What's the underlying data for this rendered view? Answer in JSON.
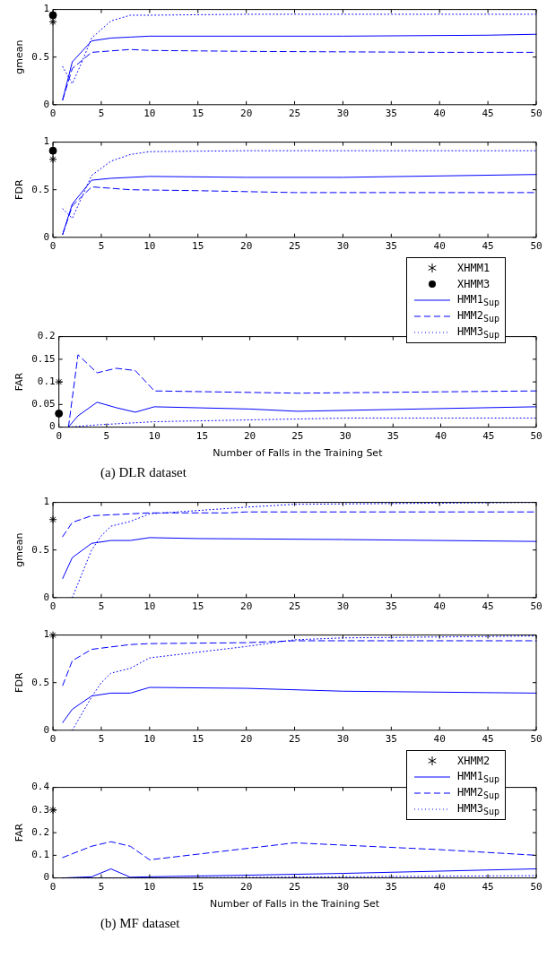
{
  "chart_data": [
    {
      "type": "line",
      "ylabel": "gmean",
      "xlim": [
        0,
        50
      ],
      "xticks": [
        0,
        5,
        10,
        15,
        20,
        25,
        30,
        35,
        40,
        45,
        50
      ],
      "ylim": [
        0,
        1
      ],
      "yticks": [
        0,
        0.5,
        1
      ],
      "series": [
        {
          "type": "scatter",
          "marker": "cross",
          "color": "#000000",
          "x": [
            0
          ],
          "values": [
            0.87
          ]
        },
        {
          "type": "scatter",
          "marker": "circle",
          "color": "#000000",
          "x": [
            0
          ],
          "values": [
            0.94
          ]
        },
        {
          "color": "#0000ff",
          "line_style": "solid",
          "marker": "none",
          "x": [
            1,
            2,
            4,
            6,
            8,
            10,
            18,
            30,
            45,
            50
          ],
          "values": [
            0.05,
            0.45,
            0.67,
            0.7,
            0.71,
            0.72,
            0.72,
            0.72,
            0.73,
            0.74
          ]
        },
        {
          "color": "#0000ff",
          "line_style": "dashed",
          "marker": "none",
          "x": [
            1,
            2,
            4,
            8,
            10,
            20,
            40,
            50
          ],
          "values": [
            0.05,
            0.38,
            0.55,
            0.58,
            0.57,
            0.56,
            0.55,
            0.55
          ]
        },
        {
          "color": "#0000ff",
          "line_style": "dotted",
          "marker": "none",
          "x": [
            1,
            2,
            3,
            4,
            6,
            8,
            10,
            20,
            50
          ],
          "values": [
            0.4,
            0.22,
            0.45,
            0.7,
            0.88,
            0.94,
            0.94,
            0.95,
            0.95
          ]
        }
      ]
    },
    {
      "type": "line",
      "ylabel": "FDR",
      "legend": "bottom right",
      "xlim": [
        0,
        50
      ],
      "xticks": [
        0,
        5,
        10,
        15,
        20,
        25,
        30,
        35,
        40,
        45,
        50
      ],
      "ylim": [
        0,
        1
      ],
      "yticks": [
        0,
        0.5,
        1
      ],
      "series": [
        {
          "name": "XHMM1",
          "type": "scatter",
          "marker": "cross",
          "color": "#000000",
          "x": [
            0
          ],
          "values": [
            0.82
          ]
        },
        {
          "name": "XHMM3",
          "type": "scatter",
          "marker": "circle",
          "color": "#000000",
          "x": [
            0
          ],
          "values": [
            0.91
          ]
        },
        {
          "name": "HMM1$_{Sup}$",
          "color": "#0000ff",
          "line_style": "solid",
          "marker": "none",
          "x": [
            1,
            2,
            4,
            6,
            10,
            20,
            30,
            50
          ],
          "values": [
            0.03,
            0.35,
            0.6,
            0.62,
            0.64,
            0.63,
            0.63,
            0.66
          ]
        },
        {
          "name": "HMM2$_{Sup}$",
          "color": "#0000ff",
          "line_style": "dashed",
          "marker": "none",
          "x": [
            1,
            2,
            4,
            8,
            15,
            25,
            50
          ],
          "values": [
            0.03,
            0.33,
            0.53,
            0.5,
            0.49,
            0.47,
            0.47
          ]
        },
        {
          "name": "HMM3$_{Sup}$",
          "color": "#0000ff",
          "line_style": "dotted",
          "marker": "none",
          "x": [
            1,
            2,
            4,
            6,
            8,
            10,
            20,
            50
          ],
          "values": [
            0.3,
            0.2,
            0.65,
            0.8,
            0.87,
            0.9,
            0.91,
            0.91
          ]
        }
      ]
    },
    {
      "type": "line",
      "ylabel": "FAR",
      "xlabel": "Number of Falls in the Training Set",
      "annotations": [
        "(a) DLR dataset"
      ],
      "xlim": [
        0,
        50
      ],
      "xticks": [
        0,
        5,
        10,
        15,
        20,
        25,
        30,
        35,
        40,
        45,
        50
      ],
      "ylim": [
        0,
        0.2
      ],
      "yticks": [
        0,
        0.05,
        0.1,
        0.15,
        0.2
      ],
      "series": [
        {
          "type": "scatter",
          "marker": "cross",
          "color": "#000000",
          "x": [
            0
          ],
          "values": [
            0.1
          ]
        },
        {
          "type": "scatter",
          "marker": "circle",
          "color": "#000000",
          "x": [
            0
          ],
          "values": [
            0.03
          ]
        },
        {
          "color": "#0000ff",
          "line_style": "solid",
          "marker": "none",
          "x": [
            1,
            2,
            4,
            6,
            8,
            10,
            20,
            25,
            50
          ],
          "values": [
            0,
            0.025,
            0.055,
            0.043,
            0.033,
            0.045,
            0.04,
            0.035,
            0.045
          ]
        },
        {
          "color": "#0000ff",
          "line_style": "dashed",
          "marker": "none",
          "x": [
            1,
            2,
            4,
            6,
            8,
            10,
            25,
            50
          ],
          "values": [
            0,
            0.16,
            0.12,
            0.13,
            0.125,
            0.08,
            0.075,
            0.08
          ]
        },
        {
          "color": "#0000ff",
          "line_style": "dotted",
          "marker": "none",
          "x": [
            1,
            4,
            10,
            30,
            50
          ],
          "values": [
            0,
            0.005,
            0.012,
            0.02,
            0.02
          ]
        }
      ]
    },
    {
      "type": "line",
      "ylabel": "gmean",
      "xlim": [
        0,
        50
      ],
      "xticks": [
        0,
        5,
        10,
        15,
        20,
        25,
        30,
        35,
        40,
        45,
        50
      ],
      "ylim": [
        0,
        1
      ],
      "yticks": [
        0,
        0.5,
        1
      ],
      "series": [
        {
          "type": "scatter",
          "marker": "cross",
          "color": "#000000",
          "x": [
            0
          ],
          "values": [
            0.82
          ]
        },
        {
          "color": "#0000ff",
          "line_style": "solid",
          "marker": "none",
          "x": [
            1,
            2,
            4,
            6,
            8,
            10,
            15,
            30,
            50
          ],
          "values": [
            0.2,
            0.42,
            0.57,
            0.6,
            0.6,
            0.63,
            0.62,
            0.61,
            0.59
          ]
        },
        {
          "color": "#0000ff",
          "line_style": "dashed",
          "marker": "none",
          "x": [
            1,
            2,
            4,
            8,
            10,
            18,
            20,
            50
          ],
          "values": [
            0.64,
            0.79,
            0.86,
            0.88,
            0.89,
            0.89,
            0.9,
            0.9
          ]
        },
        {
          "color": "#0000ff",
          "line_style": "dotted",
          "marker": "none",
          "x": [
            2,
            4,
            5,
            6,
            8,
            10,
            20,
            25,
            50
          ],
          "values": [
            0,
            0.5,
            0.65,
            0.75,
            0.8,
            0.88,
            0.95,
            0.98,
            1
          ]
        }
      ]
    },
    {
      "type": "line",
      "ylabel": "FDR",
      "legend": "bottom right",
      "xlim": [
        0,
        50
      ],
      "xticks": [
        0,
        5,
        10,
        15,
        20,
        25,
        30,
        35,
        40,
        45,
        50
      ],
      "ylim": [
        0,
        1
      ],
      "yticks": [
        0,
        0.5,
        1
      ],
      "series": [
        {
          "name": "XHMM2",
          "type": "scatter",
          "marker": "cross",
          "color": "#000000",
          "x": [
            0
          ],
          "values": [
            1
          ]
        },
        {
          "name": "HMM1$_{Sup}$",
          "color": "#0000ff",
          "line_style": "solid",
          "marker": "none",
          "x": [
            1,
            2,
            4,
            6,
            8,
            10,
            20,
            30,
            50
          ],
          "values": [
            0.08,
            0.22,
            0.36,
            0.39,
            0.39,
            0.45,
            0.44,
            0.41,
            0.39
          ]
        },
        {
          "name": "HMM2$_{Sup}$",
          "color": "#0000ff",
          "line_style": "dashed",
          "marker": "none",
          "x": [
            1,
            2,
            4,
            8,
            10,
            20,
            25,
            50
          ],
          "values": [
            0.47,
            0.73,
            0.85,
            0.9,
            0.91,
            0.92,
            0.94,
            0.94
          ]
        },
        {
          "name": "HMM3$_{Sup}$",
          "color": "#0000ff",
          "line_style": "dotted",
          "marker": "none",
          "x": [
            2,
            4,
            5,
            6,
            8,
            10,
            20,
            25,
            30,
            50
          ],
          "values": [
            0,
            0.35,
            0.5,
            0.6,
            0.65,
            0.76,
            0.88,
            0.95,
            0.97,
            0.99
          ]
        }
      ]
    },
    {
      "type": "line",
      "ylabel": "FAR",
      "xlabel": "Number of Falls in the Training Set",
      "annotations": [
        "(b) MF dataset"
      ],
      "xlim": [
        0,
        50
      ],
      "xticks": [
        0,
        5,
        10,
        15,
        20,
        25,
        30,
        35,
        40,
        45,
        50
      ],
      "ylim": [
        0,
        0.4
      ],
      "yticks": [
        0,
        0.1,
        0.2,
        0.3,
        0.4
      ],
      "series": [
        {
          "type": "scatter",
          "marker": "cross",
          "color": "#000000",
          "x": [
            0
          ],
          "values": [
            0.3
          ]
        },
        {
          "color": "#0000ff",
          "line_style": "solid",
          "marker": "none",
          "x": [
            1,
            4,
            6,
            8,
            10,
            20,
            30,
            50
          ],
          "values": [
            0,
            0.005,
            0.04,
            0.003,
            0.005,
            0.012,
            0.02,
            0.04
          ]
        },
        {
          "color": "#0000ff",
          "line_style": "dashed",
          "marker": "none",
          "x": [
            1,
            4,
            6,
            8,
            10,
            25,
            40,
            50
          ],
          "values": [
            0.09,
            0.14,
            0.16,
            0.14,
            0.08,
            0.155,
            0.125,
            0.1
          ]
        },
        {
          "color": "#0000ff",
          "line_style": "dotted",
          "marker": "none",
          "x": [
            1,
            10,
            50
          ],
          "values": [
            0,
            0,
            0.01
          ]
        }
      ]
    }
  ]
}
